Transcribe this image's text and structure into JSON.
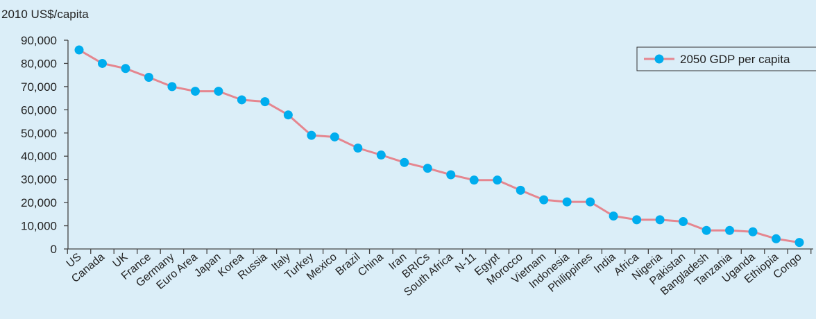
{
  "chart_data": {
    "type": "line",
    "unit_label": "2010 US$/capita",
    "ylim": [
      0,
      90000
    ],
    "y_ticks": [
      "0",
      "10,000",
      "20,000",
      "30,000",
      "40,000",
      "50,000",
      "60,000",
      "70,000",
      "80,000",
      "90,000"
    ],
    "y_tick_values": [
      0,
      10000,
      20000,
      30000,
      40000,
      50000,
      60000,
      70000,
      80000,
      90000
    ],
    "categories": [
      "US",
      "Canada",
      "UK",
      "France",
      "Germany",
      "Euro Area",
      "Japan",
      "Korea",
      "Russia",
      "Italy",
      "Turkey",
      "Mexico",
      "Brazil",
      "China",
      "Iran",
      "BRICs",
      "South Africa",
      "N-11",
      "Egypt",
      "Morocco",
      "Vietnam",
      "Indonesia",
      "Philippines",
      "India",
      "Africa",
      "Nigeria",
      "Pakistan",
      "Bangladesh",
      "Tanzania",
      "Uganda",
      "Ethiopia",
      "Congo"
    ],
    "series": [
      {
        "name": "2050 GDP per capita",
        "values": [
          85800,
          80000,
          77800,
          74000,
          70000,
          68000,
          68000,
          64300,
          63500,
          57800,
          49000,
          48300,
          43500,
          40500,
          37300,
          34800,
          32000,
          29700,
          29700,
          25300,
          21200,
          20300,
          20300,
          14200,
          12600,
          12600,
          11800,
          8000,
          8000,
          7400,
          4400,
          2800
        ]
      }
    ],
    "legend_position": "top-right",
    "grid": false,
    "colors": {
      "line": "#e5868f",
      "marker": "#00adee",
      "axis": "#444444"
    }
  }
}
